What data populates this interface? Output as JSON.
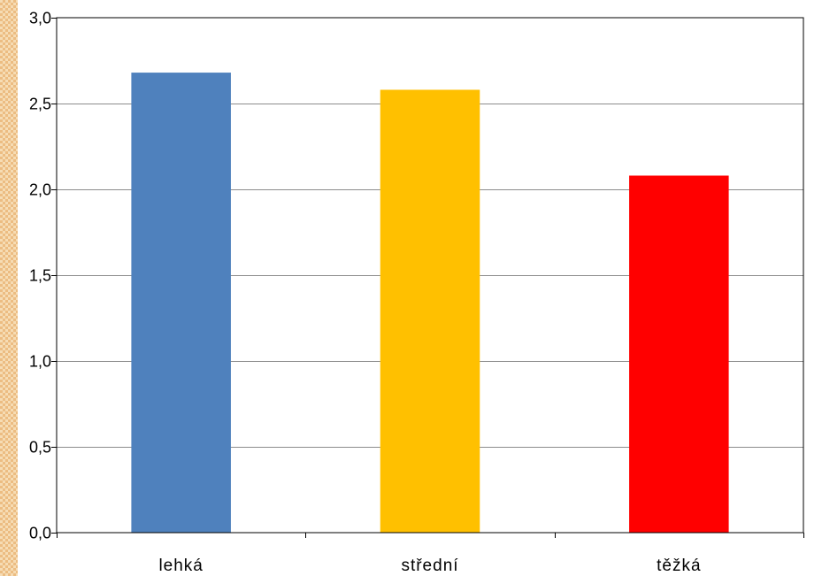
{
  "chart_data": {
    "type": "bar",
    "categories": [
      "lehká",
      "střední",
      "těžká"
    ],
    "values": [
      2.68,
      2.58,
      2.08
    ],
    "colors": [
      "#4f81bd",
      "#ffc000",
      "#ff0000"
    ],
    "ylim": [
      0,
      3
    ],
    "yticks": [
      "0,0",
      "0,5",
      "1,0",
      "1,5",
      "2,0",
      "2,5",
      "3,0"
    ],
    "grid": true,
    "title": "",
    "xlabel": "",
    "ylabel": ""
  }
}
